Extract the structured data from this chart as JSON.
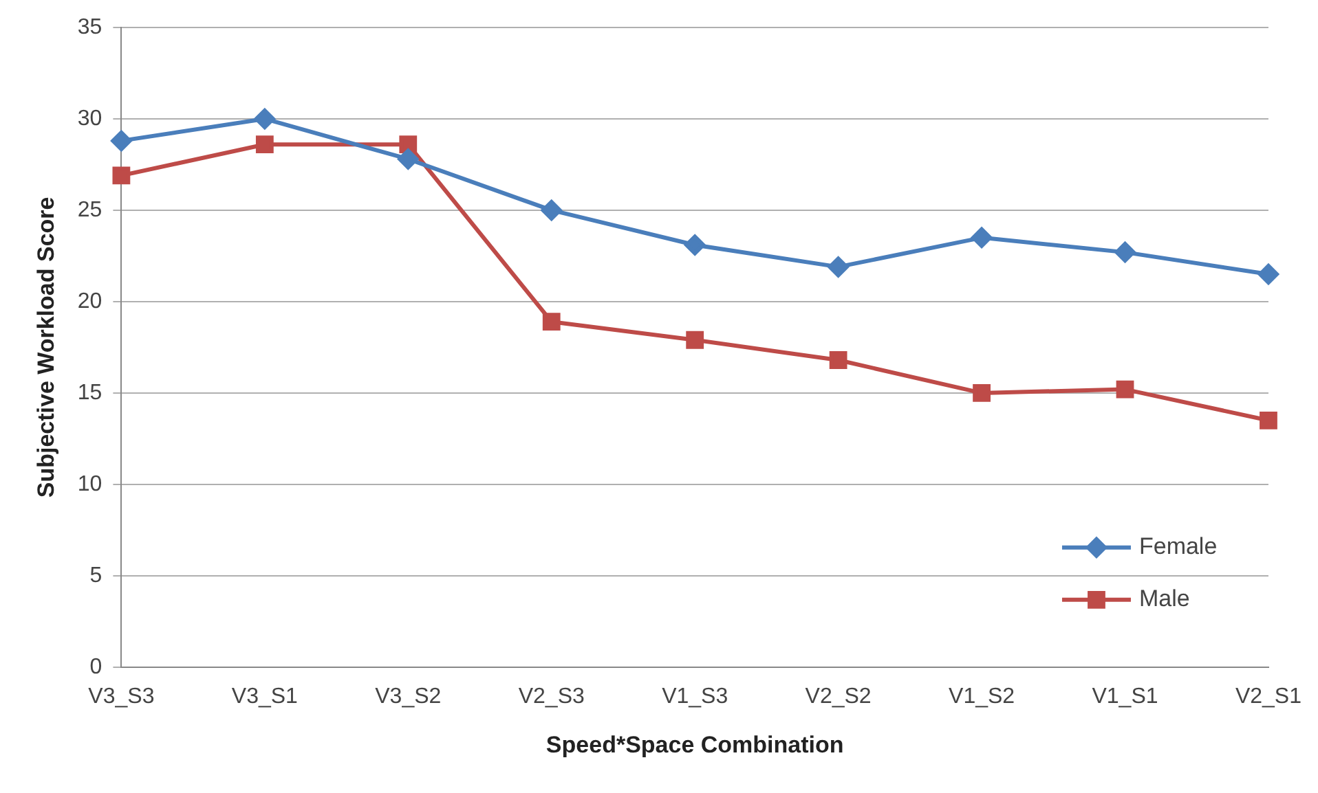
{
  "chart_data": {
    "type": "line",
    "xlabel": "Speed*Space Combination",
    "ylabel": "Subjective Workload Score",
    "categories": [
      "V3_S3",
      "V3_S1",
      "V3_S2",
      "V2_S3",
      "V1_S3",
      "V2_S2",
      "V1_S2",
      "V1_S1",
      "V2_S1"
    ],
    "series": [
      {
        "name": "Female",
        "color": "#4a7ebb",
        "marker": "diamond",
        "values": [
          28.8,
          30.0,
          27.8,
          25.0,
          23.1,
          21.9,
          23.5,
          22.7,
          21.5
        ]
      },
      {
        "name": "Male",
        "color": "#be4b48",
        "marker": "square",
        "values": [
          26.9,
          28.6,
          28.6,
          18.9,
          17.9,
          16.8,
          15.0,
          15.2,
          13.5
        ]
      }
    ],
    "ylim": [
      0,
      35
    ],
    "yticks": [
      0,
      5,
      10,
      15,
      20,
      25,
      30,
      35
    ],
    "grid": "y",
    "legend": "bottom right",
    "line_style": "solid"
  }
}
